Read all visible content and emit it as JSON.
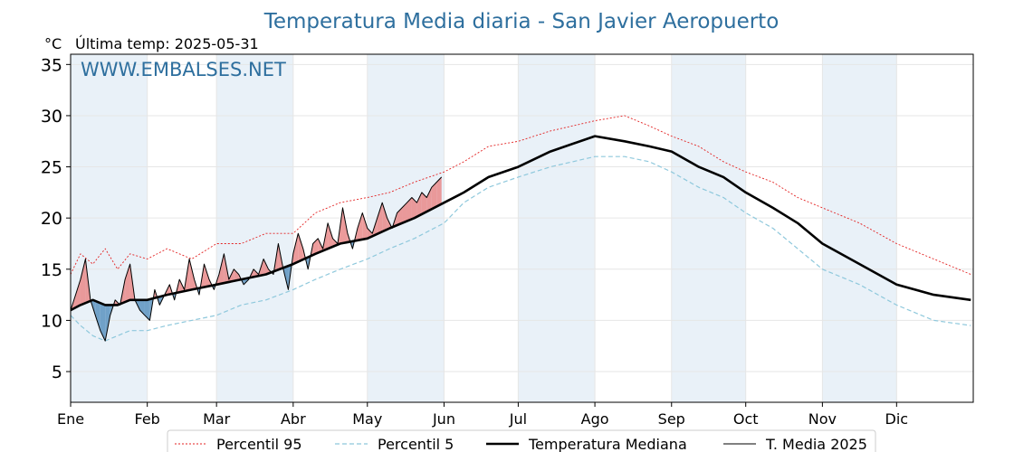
{
  "title": "Temperatura Media diaria - San Javier Aeropuerto",
  "unit_label": "°C",
  "last_temp_label": "Última temp: 2025-05-31",
  "watermark": "WWW.EMBALSES.NET",
  "colors": {
    "title": "#2e6f9e",
    "watermark": "#2e6f9e",
    "p95": "#e32222",
    "p5": "#8ec8dc",
    "median": "#000000",
    "current": "#000000",
    "above_fill": "#e98a8a",
    "below_fill": "#5a93c0",
    "month_band": "#e9f1f8",
    "grid": "#e6e6e6"
  },
  "chart_data": {
    "type": "line",
    "title": "Temperatura Media diaria - San Javier Aeropuerto",
    "ylabel": "°C",
    "xlabel": "",
    "ylim": [
      2,
      36
    ],
    "yticks": [
      5,
      10,
      15,
      20,
      25,
      30,
      35
    ],
    "grid": true,
    "legend_position": "bottom",
    "months": [
      "Ene",
      "Feb",
      "Mar",
      "Abr",
      "May",
      "Jun",
      "Jul",
      "Ago",
      "Sep",
      "Oct",
      "Nov",
      "Dic"
    ],
    "month_start_days": [
      1,
      32,
      60,
      91,
      121,
      152,
      182,
      213,
      244,
      274,
      305,
      335
    ],
    "shaded_month_indices": [
      0,
      2,
      4,
      6,
      8,
      10
    ],
    "x_max_day": 366,
    "series": [
      {
        "name": "Percentil 95",
        "style": "dotted",
        "x": [
          1,
          5,
          10,
          15,
          20,
          25,
          32,
          40,
          50,
          60,
          70,
          80,
          91,
          100,
          110,
          121,
          130,
          140,
          152,
          160,
          170,
          182,
          195,
          213,
          225,
          235,
          244,
          255,
          265,
          274,
          285,
          295,
          305,
          320,
          335,
          350,
          365
        ],
        "values": [
          14.5,
          16.5,
          15.5,
          17.0,
          15.0,
          16.5,
          16.0,
          17.0,
          16.0,
          17.5,
          17.5,
          18.5,
          18.5,
          20.5,
          21.5,
          22.0,
          22.5,
          23.5,
          24.5,
          25.5,
          27.0,
          27.5,
          28.5,
          29.5,
          30.0,
          29.0,
          28.0,
          27.0,
          25.5,
          24.5,
          23.5,
          22.0,
          21.0,
          19.5,
          17.5,
          16.0,
          14.5
        ]
      },
      {
        "name": "Percentil 5",
        "style": "dashed",
        "x": [
          1,
          5,
          10,
          15,
          20,
          25,
          32,
          40,
          50,
          60,
          70,
          80,
          91,
          100,
          110,
          121,
          130,
          140,
          152,
          160,
          170,
          182,
          195,
          213,
          225,
          235,
          244,
          255,
          265,
          274,
          285,
          295,
          305,
          320,
          335,
          350,
          365
        ],
        "values": [
          10.5,
          9.5,
          8.5,
          8.0,
          8.5,
          9.0,
          9.0,
          9.5,
          10.0,
          10.5,
          11.5,
          12.0,
          13.0,
          14.0,
          15.0,
          16.0,
          17.0,
          18.0,
          19.5,
          21.5,
          23.0,
          24.0,
          25.0,
          26.0,
          26.0,
          25.5,
          24.5,
          23.0,
          22.0,
          20.5,
          19.0,
          17.0,
          15.0,
          13.5,
          11.5,
          10.0,
          9.5
        ]
      },
      {
        "name": "Temperatura Mediana",
        "style": "thick",
        "x": [
          1,
          5,
          10,
          15,
          20,
          25,
          32,
          40,
          50,
          60,
          70,
          80,
          91,
          100,
          110,
          121,
          130,
          140,
          152,
          160,
          170,
          182,
          195,
          213,
          225,
          235,
          244,
          255,
          265,
          274,
          285,
          295,
          305,
          320,
          335,
          350,
          365
        ],
        "values": [
          11.0,
          11.5,
          12.0,
          11.5,
          11.5,
          12.0,
          12.0,
          12.5,
          13.0,
          13.5,
          14.0,
          14.5,
          15.5,
          16.5,
          17.5,
          18.0,
          19.0,
          20.0,
          21.5,
          22.5,
          24.0,
          25.0,
          26.5,
          28.0,
          27.5,
          27.0,
          26.5,
          25.0,
          24.0,
          22.5,
          21.0,
          19.5,
          17.5,
          15.5,
          13.5,
          12.5,
          12.0
        ]
      },
      {
        "name": "T. Media 2025",
        "style": "thin",
        "x": [
          1,
          3,
          5,
          7,
          9,
          11,
          13,
          15,
          17,
          19,
          21,
          23,
          25,
          27,
          29,
          31,
          33,
          35,
          37,
          39,
          41,
          43,
          45,
          47,
          49,
          51,
          53,
          55,
          57,
          59,
          61,
          63,
          65,
          67,
          69,
          71,
          73,
          75,
          77,
          79,
          81,
          83,
          85,
          87,
          89,
          91,
          93,
          95,
          97,
          99,
          101,
          103,
          105,
          107,
          109,
          111,
          113,
          115,
          117,
          119,
          121,
          123,
          125,
          127,
          129,
          131,
          133,
          135,
          137,
          139,
          141,
          143,
          145,
          147,
          149,
          151
        ],
        "values": [
          11.0,
          12.5,
          14.0,
          16.0,
          12.0,
          10.5,
          9.0,
          8.0,
          10.5,
          12.0,
          11.5,
          14.0,
          15.5,
          12.0,
          11.0,
          10.5,
          10.0,
          13.0,
          11.5,
          12.5,
          13.5,
          12.0,
          14.0,
          13.0,
          16.0,
          14.0,
          12.5,
          15.5,
          14.0,
          13.0,
          14.5,
          16.5,
          14.0,
          15.0,
          14.5,
          13.5,
          14.0,
          15.0,
          14.5,
          16.0,
          15.0,
          14.5,
          17.5,
          15.0,
          13.0,
          16.5,
          18.5,
          17.0,
          15.0,
          17.5,
          18.0,
          17.0,
          19.5,
          18.0,
          17.5,
          21.0,
          18.5,
          17.0,
          19.0,
          20.5,
          19.0,
          18.5,
          20.0,
          21.5,
          20.0,
          19.0,
          20.5,
          21.0,
          21.5,
          22.0,
          21.5,
          22.5,
          22.0,
          23.0,
          23.5,
          24.0
        ]
      }
    ]
  },
  "legend": {
    "items": [
      {
        "label": "Percentil 95"
      },
      {
        "label": "Percentil 5"
      },
      {
        "label": "Temperatura Mediana"
      },
      {
        "label": "T. Media 2025"
      }
    ]
  }
}
